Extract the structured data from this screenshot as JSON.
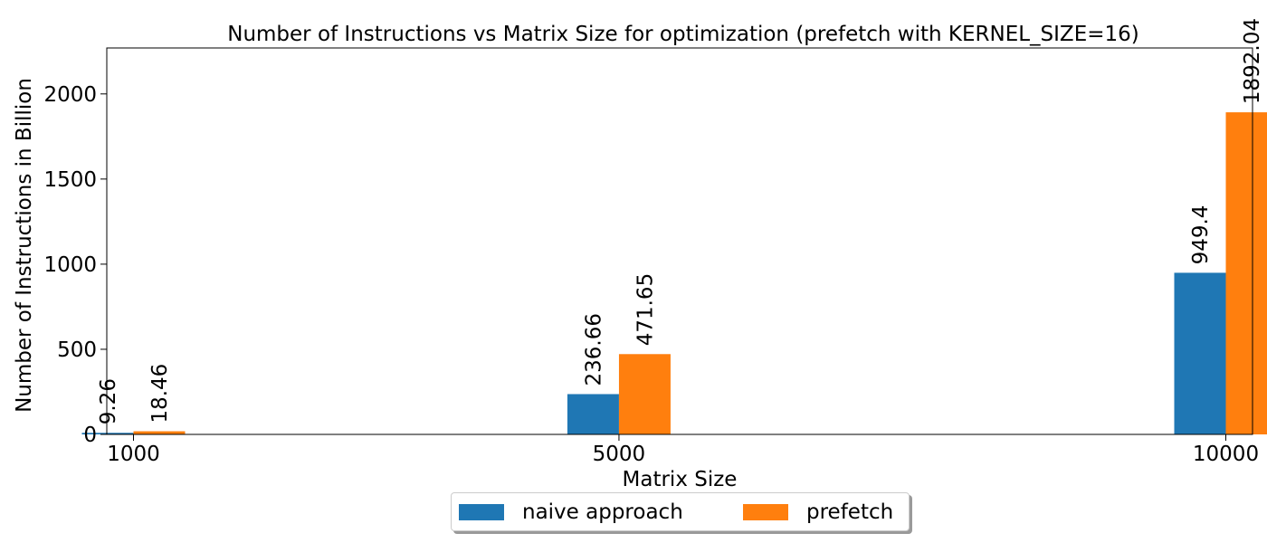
{
  "chart_data": {
    "type": "bar",
    "title": "Number of Instructions vs Matrix Size for optimization (prefetch with KERNEL_SIZE=16)",
    "xlabel": "Matrix Size",
    "ylabel": "Number of Instructions in Billion",
    "categories": [
      "1000",
      "5000",
      "10000"
    ],
    "ylim": [
      0,
      2270
    ],
    "yticks": [
      0,
      500,
      1000,
      1500,
      2000
    ],
    "grid": false,
    "legend_position": "bottom-center",
    "series": [
      {
        "name": "naive approach",
        "color": "#1f77b4",
        "values": [
          9.26,
          236.66,
          949.4
        ],
        "labels": [
          "9.26",
          "236.66",
          "949.4"
        ]
      },
      {
        "name": "prefetch",
        "color": "#ff7f0e",
        "values": [
          18.46,
          471.65,
          1892.04
        ],
        "labels": [
          "18.46",
          "471.65",
          "1892.04"
        ]
      }
    ]
  }
}
